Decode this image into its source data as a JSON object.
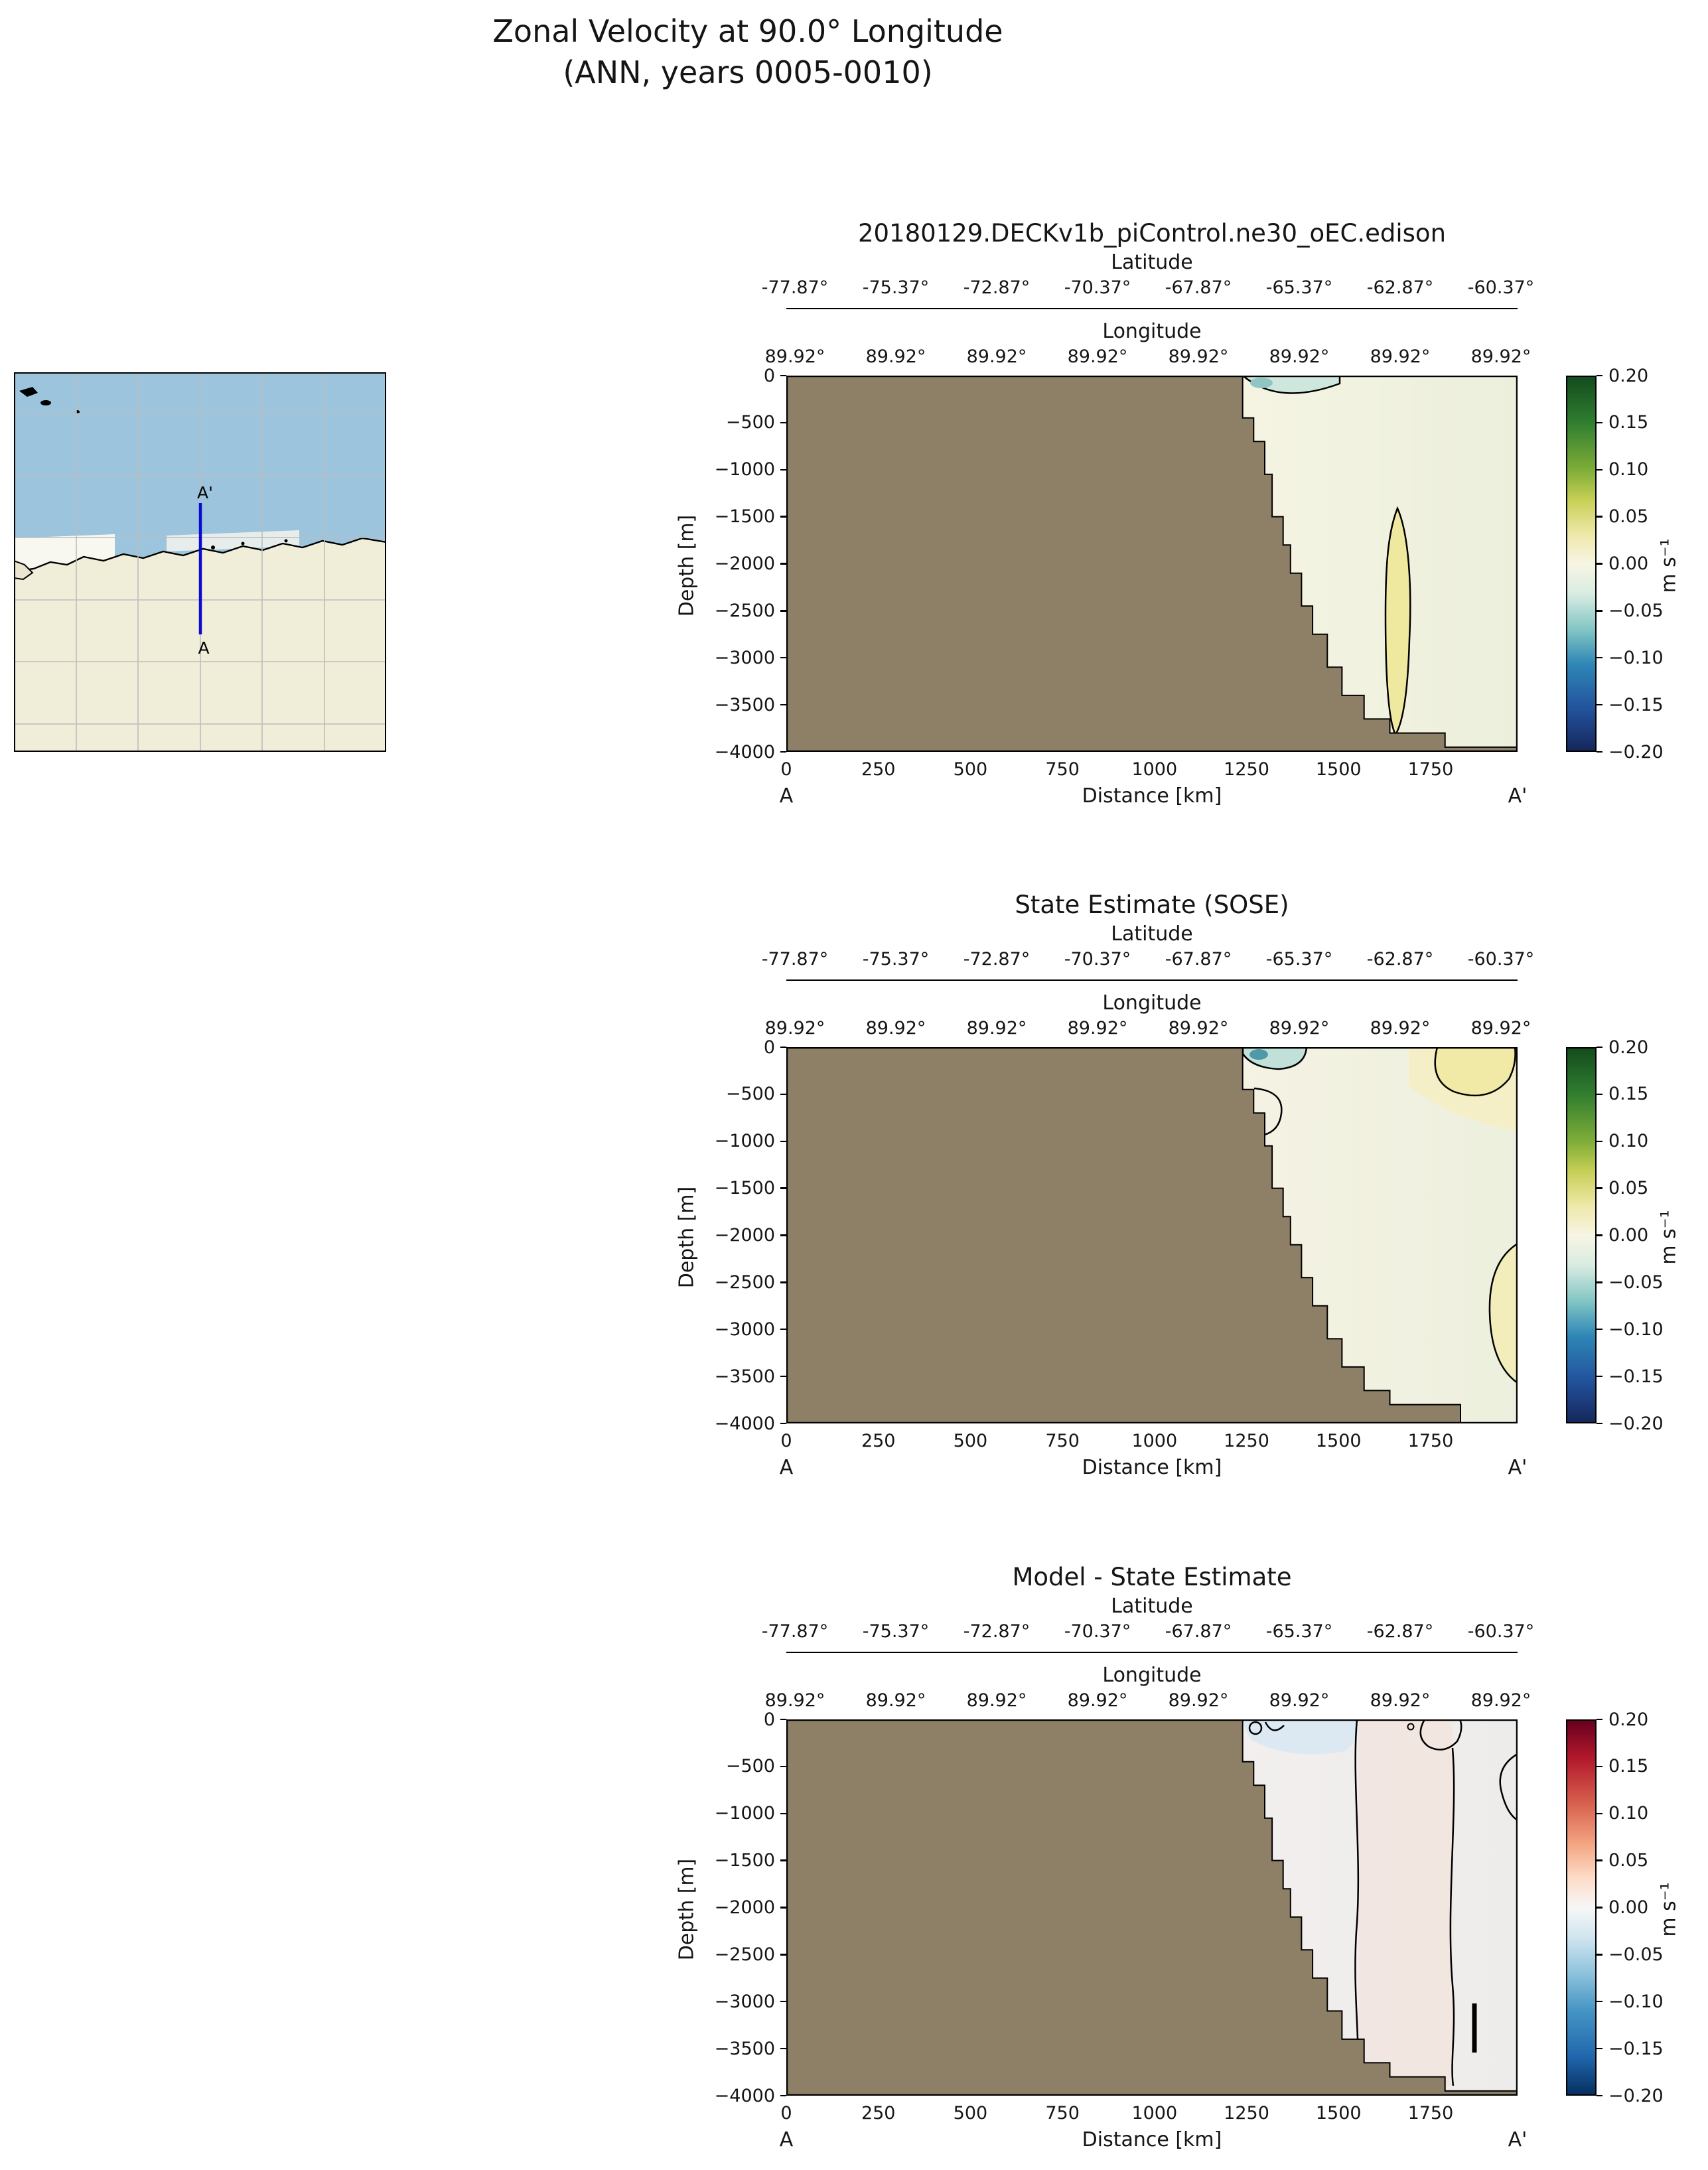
{
  "figure": {
    "title_line1": "Zonal Velocity at 90.0° Longitude",
    "title_line2": "(ANN, years 0005-0010)"
  },
  "map_inset": {
    "label_top": "A'",
    "label_bottom": "A",
    "ocean_color": "#9cc4dd",
    "land_color": "#f0edd8",
    "section_line_color": "#0b0bd0"
  },
  "panels": [
    {
      "title": "20180129.DECKv1b_piControl.ne30_oEC.edison"
    },
    {
      "title": "State Estimate (SOSE)"
    },
    {
      "title": "Model - State Estimate"
    }
  ],
  "axes": {
    "lat_label": "Latitude",
    "lon_label": "Longitude",
    "depth_label": "Depth [m]",
    "distance_label": "Distance [km]",
    "start_label": "A",
    "end_label": "A'",
    "lat_ticks": [
      "-77.87°",
      "-75.37°",
      "-72.87°",
      "-70.37°",
      "-67.87°",
      "-65.37°",
      "-62.87°",
      "-60.37°"
    ],
    "lon_ticks": [
      "89.92°",
      "89.92°",
      "89.92°",
      "89.92°",
      "89.92°",
      "89.92°",
      "89.92°",
      "89.92°"
    ],
    "depth_ticks": [
      "0",
      "−500",
      "−1000",
      "−1500",
      "−2000",
      "−2500",
      "−3000",
      "−3500",
      "−4000"
    ],
    "distance_ticks": [
      "0",
      "250",
      "500",
      "750",
      "1000",
      "1250",
      "1500",
      "1750"
    ]
  },
  "colorbar": {
    "ticks": [
      "0.20",
      "0.15",
      "0.10",
      "0.05",
      "0.00",
      "−0.05",
      "−0.10",
      "−0.15",
      "−0.20"
    ],
    "unit": "m s⁻¹"
  },
  "colors": {
    "land_mask": "#8e8067",
    "contour_line": "#000000"
  },
  "chart_data": [
    {
      "type": "heatmap",
      "title": "20180129.DECKv1b_piControl.ne30_oEC.edison",
      "xlabel": "Distance [km]",
      "ylabel": "Depth [m]",
      "x_ticks": [
        0,
        250,
        500,
        750,
        1000,
        1250,
        1500,
        1750
      ],
      "x_range_km": [
        0,
        2000
      ],
      "y_ticks": [
        0,
        -500,
        -1000,
        -1500,
        -2000,
        -2500,
        -3000,
        -3500,
        -4000
      ],
      "y_range_m": [
        -4000,
        0
      ],
      "top_latitude_ticks_deg": [
        -77.87,
        -75.37,
        -72.87,
        -70.37,
        -67.87,
        -65.37,
        -62.87,
        -60.37
      ],
      "top_longitude_ticks_deg": [
        89.92,
        89.92,
        89.92,
        89.92,
        89.92,
        89.92,
        89.92,
        89.92
      ],
      "value_units": "m s⁻¹",
      "colorbar_range": [
        -0.2,
        0.2
      ],
      "colorbar_ticks": [
        0.2,
        0.15,
        0.1,
        0.05,
        0.0,
        -0.05,
        -0.1,
        -0.15,
        -0.2
      ],
      "colormap_stops_low_to_high": [
        "#15275c",
        "#2356a0",
        "#2e86b5",
        "#7fc4c4",
        "#d9ece2",
        "#f7f5e4",
        "#eee8a8",
        "#c8cf56",
        "#7fae38",
        "#2f7d2f",
        "#134c1e"
      ],
      "land_mask": "continental shelf filled from 0 to ~1250 km at all depths, stepping down to 4000 m by ~1800 km, thin sea floor strip along bottom to right edge",
      "features": [
        "velocities near 0 m s⁻¹ (pale cream/green) over most of the open-ocean section",
        "weak negative (teal) patch at the surface near 1300–1450 km inside a zero contour",
        "weak positive (pale yellow) vertical core near 1650–1750 km between ~1500 m and ~3700 m depth, outlined by zero contour"
      ]
    },
    {
      "type": "heatmap",
      "title": "State Estimate (SOSE)",
      "xlabel": "Distance [km]",
      "ylabel": "Depth [m]",
      "x_ticks": [
        0,
        250,
        500,
        750,
        1000,
        1250,
        1500,
        1750
      ],
      "x_range_km": [
        0,
        2000
      ],
      "y_ticks": [
        0,
        -500,
        -1000,
        -1500,
        -2000,
        -2500,
        -3000,
        -3500,
        -4000
      ],
      "y_range_m": [
        -4000,
        0
      ],
      "top_latitude_ticks_deg": [
        -77.87,
        -75.37,
        -72.87,
        -70.37,
        -67.87,
        -65.37,
        -62.87,
        -60.37
      ],
      "top_longitude_ticks_deg": [
        89.92,
        89.92,
        89.92,
        89.92,
        89.92,
        89.92,
        89.92,
        89.92
      ],
      "value_units": "m s⁻¹",
      "colorbar_range": [
        -0.2,
        0.2
      ],
      "colorbar_ticks": [
        0.2,
        0.15,
        0.1,
        0.05,
        0.0,
        -0.05,
        -0.1,
        -0.15,
        -0.2
      ],
      "colormap_stops_low_to_high": [
        "#15275c",
        "#2356a0",
        "#2e86b5",
        "#7fc4c4",
        "#d9ece2",
        "#f7f5e4",
        "#eee8a8",
        "#c8cf56",
        "#7fae38",
        "#2f7d2f",
        "#134c1e"
      ],
      "land_mask": "same stepped bathymetry as model panel; sea floor strip ends near 1850 km with open water in the bottom-right corner",
      "features": [
        "stronger negative (dark teal) surface patch at ~1300 km near the shelf break",
        "zero-contour loop attached to the slope near 1300 km between ~400 and ~950 m",
        "positive (yellow) surface cell near 1750–2000 km outlined by a zero contour",
        "positive cell against the right edge between ~2100 and ~3600 m depth"
      ]
    },
    {
      "type": "heatmap",
      "title": "Model - State Estimate",
      "xlabel": "Distance [km]",
      "ylabel": "Depth [m]",
      "x_ticks": [
        0,
        250,
        500,
        750,
        1000,
        1250,
        1500,
        1750
      ],
      "x_range_km": [
        0,
        2000
      ],
      "y_ticks": [
        0,
        -500,
        -1000,
        -1500,
        -2000,
        -2500,
        -3000,
        -3500,
        -4000
      ],
      "y_range_m": [
        -4000,
        0
      ],
      "top_latitude_ticks_deg": [
        -77.87,
        -75.37,
        -72.87,
        -70.37,
        -67.87,
        -65.37,
        -62.87,
        -60.37
      ],
      "top_longitude_ticks_deg": [
        89.92,
        89.92,
        89.92,
        89.92,
        89.92,
        89.92,
        89.92,
        89.92
      ],
      "value_units": "m s⁻¹",
      "colorbar_range": [
        -0.2,
        0.2
      ],
      "colorbar_ticks": [
        0.2,
        0.15,
        0.1,
        0.05,
        0.0,
        -0.05,
        -0.1,
        -0.15,
        -0.2
      ],
      "colormap_stops_low_to_high": [
        "#053061",
        "#2166ac",
        "#4393c3",
        "#92c5de",
        "#d1e5f0",
        "#f7f7f7",
        "#fddbc7",
        "#f4a582",
        "#d6604d",
        "#b2182b",
        "#67001f"
      ],
      "land_mask": "same stepped bathymetry as model panel",
      "features": [
        "differences mostly within ±0.05 m s⁻¹ (near-white/pale pink)",
        "weak negative (pale blue) surface patch near 1300–1550 km",
        "zero-difference contours running from surface to sea floor near ~1550 km and ~1850 km",
        "small closed contours at the surface near the shelf break and near the right edge above ~600 m",
        "short dark vertical contour segment near 1870 km between ~3050 and ~3550 m"
      ]
    }
  ]
}
